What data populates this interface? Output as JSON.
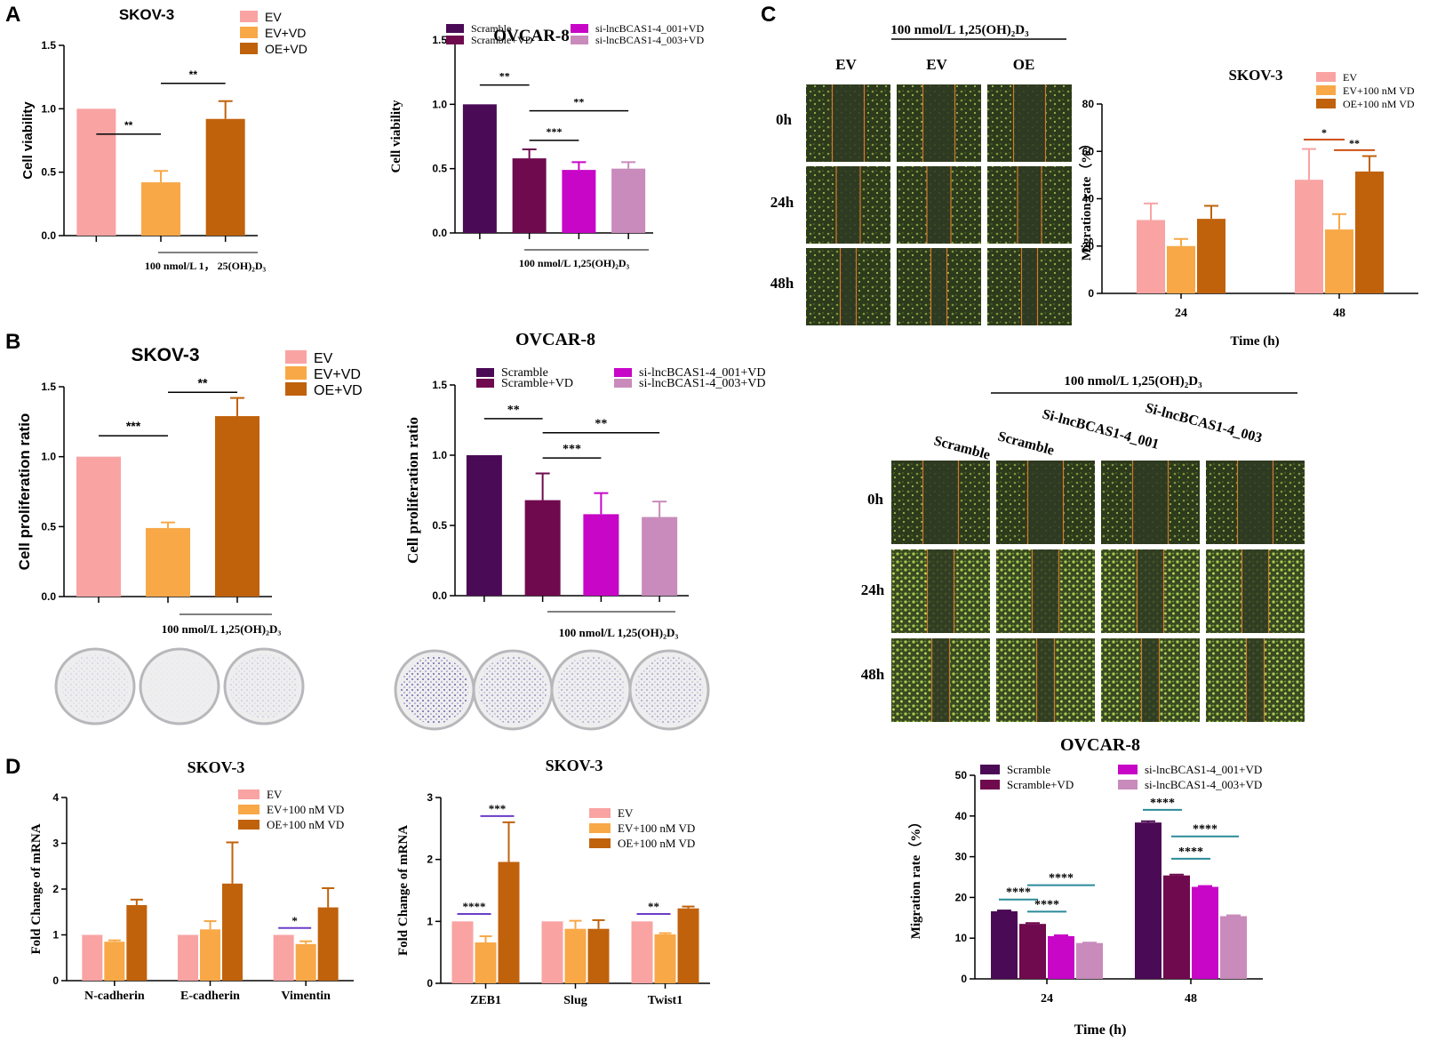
{
  "figure": {
    "panel_labels": [
      "A",
      "B",
      "C",
      "D"
    ],
    "treatment_label": "100 nmol/L 1,25(OH)₂D₃",
    "treatment_label_a1": "100 nmol/L 1， 25(OH)₂D₃",
    "treatment_label_c": "100 nmol/L  1,25(OH)₂D₃"
  },
  "colors": {
    "ev": "#f9a3a3",
    "ev_vd": "#f8a847",
    "oe_vd": "#c0620c",
    "scramble": "#4b0a55",
    "scramble_vd": "#6f0a4e",
    "si001": "#c706c7",
    "si003": "#c88bbb",
    "sig_purple": "#6a3dc8",
    "sig_teal": "#2a8a9a",
    "sig_red": "#d05010"
  },
  "chart_data": [
    {
      "id": "a1",
      "type": "bar",
      "title": "SKOV-3",
      "font": "sans",
      "ylabel": "Cell viability",
      "xlabel": "",
      "ylim": [
        0,
        1.5
      ],
      "yticks": [
        0.0,
        0.5,
        1.0,
        1.5
      ],
      "categories": [
        "EV",
        "EV+VD",
        "OE+VD"
      ],
      "values": [
        1.0,
        0.42,
        0.92
      ],
      "errors": [
        0,
        0.09,
        0.14
      ],
      "colorKeys": [
        "ev",
        "ev_vd",
        "oe_vd"
      ],
      "legend": [
        "EV",
        "EV+VD",
        "OE+VD"
      ],
      "significance": [
        {
          "from": 0,
          "to": 1,
          "level": 0.8,
          "label": "**"
        },
        {
          "from": 1,
          "to": 2,
          "level": 1.2,
          "label": "**"
        }
      ],
      "bracket_label": "100 nmol/L 1， 25(OH)₂D₃"
    },
    {
      "id": "a2",
      "type": "bar",
      "title": "OVCAR-8",
      "font": "serif",
      "ylabel": "Cell viability",
      "xlabel": "",
      "ylim": [
        0,
        1.5
      ],
      "yticks": [
        0.0,
        0.5,
        1.0,
        1.5
      ],
      "categories": [
        "Scramble",
        "Scramble+VD",
        "si-lncBCAS1-4_001+VD",
        "si-lncBCAS1-4_003+VD"
      ],
      "values": [
        1.0,
        0.58,
        0.49,
        0.5
      ],
      "errors": [
        0,
        0.07,
        0.06,
        0.05
      ],
      "colorKeys": [
        "scramble",
        "scramble_vd",
        "si001",
        "si003"
      ],
      "legend": [
        "Scramble",
        "Scramble+VD",
        "si-lncBCAS1-4_001+VD",
        "si-lncBCAS1-4_003+VD"
      ],
      "significance": [
        {
          "from": 0,
          "to": 1,
          "level": 1.15,
          "label": "**"
        },
        {
          "from": 1,
          "to": 3,
          "level": 0.95,
          "label": "**"
        },
        {
          "from": 1,
          "to": 2,
          "level": 0.72,
          "label": "***"
        }
      ],
      "bracket_label": "100 nmol/L 1,25(OH)₂D₃"
    },
    {
      "id": "b1",
      "type": "bar",
      "title": "SKOV-3",
      "font": "sans",
      "ylabel": "Cell proliferation ratio",
      "xlabel": "",
      "ylim": [
        0,
        1.5
      ],
      "yticks": [
        0.0,
        0.5,
        1.0,
        1.5
      ],
      "categories": [
        "EV",
        "EV+VD",
        "OE+VD"
      ],
      "values": [
        1.0,
        0.49,
        1.29
      ],
      "errors": [
        0,
        0.04,
        0.13
      ],
      "colorKeys": [
        "ev",
        "ev_vd",
        "oe_vd"
      ],
      "legend": [
        "EV",
        "EV+VD",
        "OE+VD"
      ],
      "significance": [
        {
          "from": 0,
          "to": 1,
          "level": 1.15,
          "label": "***"
        },
        {
          "from": 1,
          "to": 2,
          "level": 1.46,
          "label": "**"
        }
      ],
      "bracket_label": "100 nmol/L 1,25(OH)₂D₃"
    },
    {
      "id": "b2",
      "type": "bar",
      "title": "OVCAR-8",
      "font": "serif",
      "ylabel": "Cell proliferation ratio",
      "xlabel": "",
      "ylim": [
        0,
        1.5
      ],
      "yticks": [
        0.0,
        0.5,
        1.0,
        1.5
      ],
      "categories": [
        "Scramble",
        "Scramble+VD",
        "si-lncBCAS1-4_001+VD",
        "si-lncBCAS1-4_003+VD"
      ],
      "values": [
        1.0,
        0.68,
        0.58,
        0.56
      ],
      "errors": [
        0,
        0.19,
        0.15,
        0.11
      ],
      "colorKeys": [
        "scramble",
        "scramble_vd",
        "si001",
        "si003"
      ],
      "legend": [
        "Scramble",
        "Scramble+VD",
        "si-lncBCAS1-4_001+VD",
        "si-lncBCAS1-4_003+VD"
      ],
      "significance": [
        {
          "from": 0,
          "to": 1,
          "level": 1.26,
          "label": "**"
        },
        {
          "from": 1,
          "to": 3,
          "level": 1.16,
          "label": "**"
        },
        {
          "from": 1,
          "to": 2,
          "level": 0.98,
          "label": "***"
        }
      ],
      "bracket_label": "100 nmol/L 1,25(OH)₂D₃"
    },
    {
      "id": "c1",
      "type": "grouped_bar",
      "title": "SKOV-3",
      "font": "serif",
      "ylabel": "Migration rate（%）",
      "xlabel": "Time (h)",
      "ylim": [
        0,
        80
      ],
      "yticks": [
        0,
        20,
        40,
        60,
        80
      ],
      "categories": [
        "24",
        "48"
      ],
      "series": [
        {
          "name": "EV",
          "colorKey": "ev",
          "values": [
            31,
            48
          ],
          "errors": [
            7,
            13
          ]
        },
        {
          "name": "EV+100 nM VD",
          "colorKey": "ev_vd",
          "values": [
            20,
            27
          ],
          "errors": [
            3,
            6.5
          ]
        },
        {
          "name": "OE+100 nM VD",
          "colorKey": "oe_vd",
          "values": [
            31.5,
            51.5
          ],
          "errors": [
            5.5,
            6.5
          ]
        }
      ],
      "significance": [
        {
          "group": 1,
          "from": 0,
          "to": 1,
          "level": 65,
          "label": "*",
          "colorKey": "sig_red"
        },
        {
          "group": 1,
          "from": 1,
          "to": 2,
          "level": 60.5,
          "label": "**",
          "colorKey": "sig_red"
        }
      ]
    },
    {
      "id": "c2",
      "type": "grouped_bar",
      "title": "OVCAR-8",
      "font": "serif",
      "ylabel": "Migration rate（%）",
      "xlabel": "Time (h)",
      "ylim": [
        0,
        50
      ],
      "yticks": [
        0,
        10,
        20,
        30,
        40,
        50
      ],
      "categories": [
        "24",
        "48"
      ],
      "series": [
        {
          "name": "Scramble",
          "colorKey": "scramble",
          "values": [
            16.6,
            38.4
          ],
          "errors": [
            0.2,
            0.3
          ]
        },
        {
          "name": "Scramble+VD",
          "colorKey": "scramble_vd",
          "values": [
            13.5,
            25.4
          ],
          "errors": [
            0.2,
            0.2
          ]
        },
        {
          "name": "si-lncBCAS1-4_001+VD",
          "colorKey": "si001",
          "values": [
            10.5,
            22.6
          ],
          "errors": [
            0.2,
            0.2
          ]
        },
        {
          "name": "si-lncBCAS1-4_003+VD",
          "colorKey": "si003",
          "values": [
            8.8,
            15.4
          ],
          "errors": [
            0.1,
            0.2
          ]
        }
      ],
      "significance": [
        {
          "group": 0,
          "from": 0,
          "to": 1,
          "level": 19.5,
          "label": "****",
          "colorKey": "sig_teal"
        },
        {
          "group": 0,
          "from": 1,
          "to": 3,
          "level": 23.0,
          "label": "****",
          "colorKey": "sig_teal"
        },
        {
          "group": 0,
          "from": 1,
          "to": 2,
          "level": 16.5,
          "label": "****",
          "colorKey": "sig_teal"
        },
        {
          "group": 1,
          "from": 0,
          "to": 1,
          "level": 41.5,
          "label": "****",
          "colorKey": "sig_teal"
        },
        {
          "group": 1,
          "from": 1,
          "to": 3,
          "level": 35.0,
          "label": "****",
          "colorKey": "sig_teal"
        },
        {
          "group": 1,
          "from": 1,
          "to": 2,
          "level": 29.5,
          "label": "****",
          "colorKey": "sig_teal"
        }
      ]
    },
    {
      "id": "d1",
      "type": "grouped_bar",
      "title": "SKOV-3",
      "font": "serif",
      "ylabel": "Fold Change of mRNA",
      "xlabel": "",
      "ylim": [
        0,
        4
      ],
      "yticks": [
        0,
        1,
        2,
        3,
        4
      ],
      "categories": [
        "N-cadherin",
        "E-cadherin",
        "Vimentin"
      ],
      "series": [
        {
          "name": "EV",
          "colorKey": "ev",
          "values": [
            1.0,
            1.0,
            1.0
          ],
          "errors": [
            0,
            0,
            0
          ]
        },
        {
          "name": "EV+100 nM VD",
          "colorKey": "ev_vd",
          "values": [
            0.85,
            1.12,
            0.8
          ],
          "errors": [
            0.03,
            0.18,
            0.06
          ]
        },
        {
          "name": "OE+100 nM VD",
          "colorKey": "oe_vd",
          "values": [
            1.65,
            2.12,
            1.6
          ],
          "errors": [
            0.12,
            0.9,
            0.42
          ]
        }
      ],
      "significance": [
        {
          "group": 2,
          "from": 0,
          "to": 1,
          "level": 1.15,
          "label": "*",
          "colorKey": "sig_purple"
        }
      ]
    },
    {
      "id": "d2",
      "type": "grouped_bar",
      "title": "SKOV-3",
      "font": "serif",
      "ylabel": "Fold Change of mRNA",
      "xlabel": "",
      "ylim": [
        0,
        3
      ],
      "yticks": [
        0,
        1,
        2,
        3
      ],
      "categories": [
        "ZEB1",
        "Slug",
        "Twist1"
      ],
      "series": [
        {
          "name": "EV",
          "colorKey": "ev",
          "values": [
            1.0,
            1.0,
            1.0
          ],
          "errors": [
            0,
            0,
            0
          ]
        },
        {
          "name": "EV+100 nM VD",
          "colorKey": "ev_vd",
          "values": [
            0.66,
            0.88,
            0.79
          ],
          "errors": [
            0.1,
            0.13,
            0.02
          ]
        },
        {
          "name": "OE+100 nM VD",
          "colorKey": "oe_vd",
          "values": [
            1.96,
            0.88,
            1.21
          ],
          "errors": [
            0.64,
            0.14,
            0.03
          ]
        }
      ],
      "significance": [
        {
          "group": 0,
          "from": 0,
          "to": 1,
          "level": 1.12,
          "label": "****",
          "colorKey": "sig_purple"
        },
        {
          "group": 0,
          "from": 1,
          "to": 2,
          "level": 2.7,
          "label": "***",
          "colorKey": "sig_purple"
        },
        {
          "group": 2,
          "from": 0,
          "to": 1,
          "level": 1.12,
          "label": "**",
          "colorKey": "sig_purple"
        }
      ]
    }
  ],
  "wound_healing": {
    "skov3": {
      "treatment": "100 nmol/L  1,25(OH)₂D₃",
      "columns": [
        "EV",
        "EV",
        "OE"
      ],
      "rows": [
        "0h",
        "24h",
        "48h"
      ]
    },
    "ovcar8": {
      "treatment": "100 nmol/L   1,25(OH)₂D₃",
      "columns": [
        "Scramble",
        "Scramble",
        "Si-lncBCAS1-4_001",
        "Si-lncBCAS1-4_003"
      ],
      "rows": [
        "0h",
        "24h",
        "48h"
      ]
    }
  },
  "colony_plates": {
    "skov3": {
      "count": 3,
      "stain_levels": [
        0.15,
        0.05,
        0.2
      ]
    },
    "ovcar8": {
      "count": 4,
      "stain_levels": [
        0.85,
        0.55,
        0.4,
        0.45
      ]
    }
  }
}
